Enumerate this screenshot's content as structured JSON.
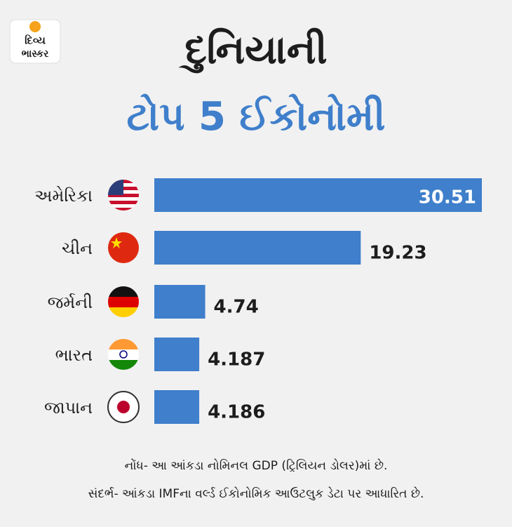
{
  "logo": {
    "line1": "દિવ્ય",
    "line2": "ભાસ્કર"
  },
  "chart_data": {
    "type": "bar",
    "orientation": "horizontal",
    "title": "દુનિયાની",
    "subtitle": "ટોપ 5 ઈકોનોમી",
    "categories": [
      "અમેરિકા",
      "ચીન",
      "જર્મની",
      "ભારત",
      "જાપાન"
    ],
    "values": [
      30.51,
      19.23,
      4.74,
      4.187,
      4.186
    ],
    "color": "#3f7fcb",
    "notes": [
      "નોંધ- આ આંકડા નોમિનલ GDP (ટ્રિલિયન ડોલર)માં છે.",
      "સંદર્ભ- આંકડા IMFના વર્લ્ડ ઈકોનોમિક આઉટલુક ડેટા પર આધારિત છે."
    ]
  }
}
